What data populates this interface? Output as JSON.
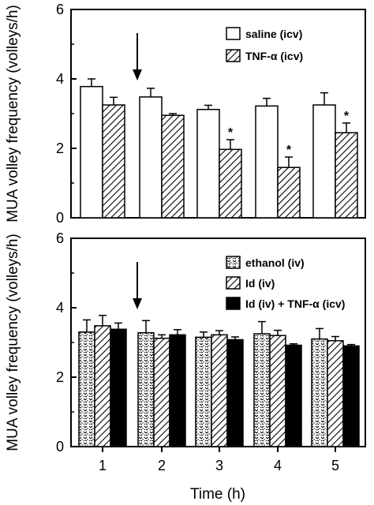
{
  "chart_data": [
    {
      "type": "bar",
      "panel": "top",
      "categories": [
        "1",
        "2",
        "3",
        "4",
        "5"
      ],
      "series": [
        {
          "name": "saline (icv)",
          "values": [
            3.78,
            3.48,
            3.12,
            3.22,
            3.25
          ],
          "errors": [
            0.22,
            0.25,
            0.12,
            0.22,
            0.35
          ],
          "pattern": "open"
        },
        {
          "name": "TNF-α (icv)",
          "values": [
            3.25,
            2.95,
            1.97,
            1.45,
            2.45
          ],
          "errors": [
            0.22,
            0.05,
            0.28,
            0.3,
            0.28
          ],
          "pattern": "hatched"
        }
      ],
      "significance": [
        "",
        "",
        "*",
        "*",
        "*"
      ],
      "title": "",
      "xlabel": "",
      "ylabel": "MUA volley frequency (volleys/h)",
      "ylim": [
        0,
        6
      ],
      "yticks": [
        "0",
        "2",
        "4",
        "6"
      ],
      "arrow_at_category": 2,
      "legend_position": "top-right",
      "grid": false
    },
    {
      "type": "bar",
      "panel": "bottom",
      "categories": [
        "1",
        "2",
        "3",
        "4",
        "5"
      ],
      "series": [
        {
          "name": "ethanol (iv)",
          "values": [
            3.3,
            3.28,
            3.15,
            3.25,
            3.1
          ],
          "errors": [
            0.35,
            0.35,
            0.15,
            0.35,
            0.3
          ],
          "pattern": "dotted"
        },
        {
          "name": "Id (iv)",
          "values": [
            3.48,
            3.12,
            3.22,
            3.2,
            3.05
          ],
          "errors": [
            0.3,
            0.1,
            0.12,
            0.15,
            0.12
          ],
          "pattern": "hatched"
        },
        {
          "name": "Id (iv) + TNF-α  (icv)",
          "values": [
            3.38,
            3.22,
            3.08,
            2.92,
            2.9
          ],
          "errors": [
            0.18,
            0.15,
            0.08,
            0.04,
            0.04
          ],
          "pattern": "solid"
        }
      ],
      "title": "",
      "xlabel": "Time (h)",
      "ylabel": "MUA volley frequency (volleys/h)",
      "ylim": [
        0,
        6
      ],
      "yticks": [
        "0",
        "2",
        "4",
        "6"
      ],
      "arrow_at_category": 2,
      "legend_position": "top-right",
      "grid": false
    }
  ],
  "colors": {
    "axis": "#000000",
    "background": "#ffffff",
    "solid_bar": "#000000",
    "open_bar": "#ffffff"
  }
}
